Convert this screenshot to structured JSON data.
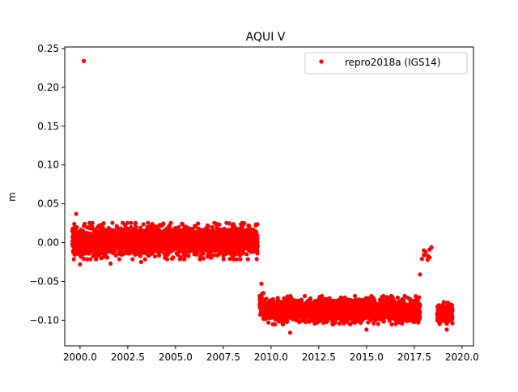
{
  "chart_data": {
    "type": "scatter",
    "title": "AQUI V",
    "xlabel": "",
    "ylabel": "m",
    "xlim": [
      1999.2,
      2020.6
    ],
    "ylim": [
      -0.133,
      0.252
    ],
    "x_ticks": [
      2000.0,
      2002.5,
      2005.0,
      2007.5,
      2010.0,
      2012.5,
      2015.0,
      2017.5,
      2020.0
    ],
    "x_tick_labels": [
      "2000.0",
      "2002.5",
      "2005.0",
      "2007.5",
      "2010.0",
      "2012.5",
      "2015.0",
      "2017.5",
      "2020.0"
    ],
    "y_ticks": [
      -0.1,
      -0.05,
      0.0,
      0.05,
      0.1,
      0.15,
      0.2,
      0.25
    ],
    "y_tick_labels": [
      "−0.10",
      "−0.05",
      "0.00",
      "0.05",
      "0.10",
      "0.15",
      "0.20",
      "0.25"
    ],
    "grid": false,
    "legend_position": "top-right",
    "series": [
      {
        "name": "repro2018a (IGS14)",
        "color": "#ff0000",
        "marker": "circle",
        "segments": [
          {
            "x_range": [
              1999.6,
              2009.3
            ],
            "level": 0.002,
            "spread": 0.009
          },
          {
            "x_range": [
              2009.4,
              2009.6
            ],
            "level": -0.078,
            "spread": 0.006
          },
          {
            "x_range": [
              2009.6,
              2017.8
            ],
            "level": -0.087,
            "spread": 0.007
          },
          {
            "x_range": [
              2018.7,
              2019.5
            ],
            "level": -0.092,
            "spread": 0.006
          }
        ],
        "points": [
          [
            2000.2,
            0.234
          ],
          [
            1999.8,
            0.037
          ],
          [
            1999.7,
            0.024
          ],
          [
            1999.6,
            0.015
          ],
          [
            2000.0,
            -0.028
          ],
          [
            2001.6,
            -0.027
          ],
          [
            2003.2,
            -0.025
          ],
          [
            2008.6,
            0.025
          ],
          [
            2009.2,
            0.022
          ],
          [
            2009.5,
            -0.053
          ],
          [
            2009.6,
            -0.065
          ],
          [
            2009.6,
            -0.09
          ],
          [
            2011.0,
            -0.116
          ],
          [
            2015.0,
            -0.112
          ],
          [
            2019.2,
            -0.112
          ],
          [
            2019.5,
            -0.104
          ],
          [
            2017.8,
            -0.041
          ],
          [
            2017.9,
            -0.021
          ],
          [
            2018.0,
            -0.016
          ],
          [
            2018.1,
            -0.012
          ],
          [
            2018.2,
            -0.017
          ],
          [
            2018.3,
            -0.009
          ],
          [
            2018.4,
            -0.006
          ],
          [
            2018.2,
            -0.022
          ],
          [
            2018.0,
            -0.01
          ],
          [
            2018.3,
            -0.019
          ]
        ]
      }
    ]
  }
}
